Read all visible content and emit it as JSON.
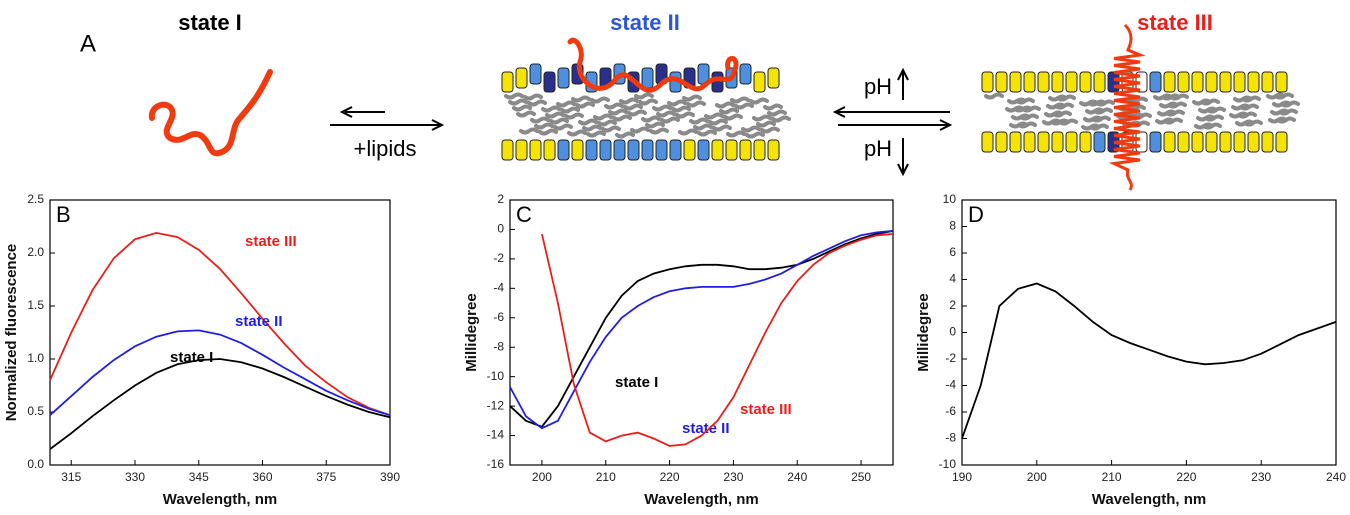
{
  "diagram": {
    "label": "A",
    "states": [
      "state I",
      "state II",
      "state III"
    ],
    "arrow_labels": [
      "+lipids",
      "pH",
      "pH"
    ]
  },
  "chart_data": [
    {
      "type": "line",
      "label": "B",
      "x_label": "Wavelength, nm",
      "y_label": "Normalized fluorescence",
      "x": [
        310,
        315,
        320,
        325,
        330,
        335,
        340,
        345,
        350,
        355,
        360,
        365,
        370,
        375,
        380,
        385,
        390
      ],
      "series": [
        {
          "name": "state III",
          "color": "#e8201c",
          "values": [
            0.8,
            1.25,
            1.65,
            1.95,
            2.13,
            2.19,
            2.15,
            2.03,
            1.85,
            1.62,
            1.38,
            1.15,
            0.94,
            0.78,
            0.64,
            0.54,
            0.47
          ]
        },
        {
          "name": "state II",
          "color": "#1f1fe0",
          "values": [
            0.47,
            0.65,
            0.83,
            0.99,
            1.12,
            1.21,
            1.26,
            1.27,
            1.23,
            1.15,
            1.04,
            0.92,
            0.81,
            0.7,
            0.61,
            0.53,
            0.47
          ]
        },
        {
          "name": "state I",
          "color": "#000000",
          "values": [
            0.15,
            0.3,
            0.46,
            0.61,
            0.75,
            0.87,
            0.95,
            0.99,
            1.0,
            0.97,
            0.91,
            0.83,
            0.74,
            0.65,
            0.57,
            0.5,
            0.45
          ]
        }
      ],
      "xlim": [
        310,
        390
      ],
      "ylim": [
        0,
        2.5
      ],
      "xticks": [
        315,
        330,
        345,
        360,
        375,
        390
      ],
      "yticks": [
        {
          "value": 0,
          "label": "0.0"
        },
        0.5,
        {
          "value": 1,
          "label": "1.0"
        },
        1.5,
        {
          "value": 2,
          "label": "2.0"
        },
        2.5
      ]
    },
    {
      "type": "line",
      "label": "C",
      "x_label": "Wavelength, nm",
      "y_label": "Millidegree",
      "x": [
        195,
        197.5,
        200,
        202.5,
        205,
        207.5,
        210,
        212.5,
        215,
        217.5,
        220,
        222.5,
        225,
        227.5,
        230,
        232.5,
        235,
        237.5,
        240,
        242.5,
        245,
        247.5,
        250,
        252.5,
        255
      ],
      "series": [
        {
          "name": "state I",
          "color": "#000000",
          "values": [
            -12,
            -13,
            -13.4,
            -12,
            -10,
            -8,
            -6,
            -4.5,
            -3.5,
            -3,
            -2.7,
            -2.5,
            -2.4,
            -2.4,
            -2.5,
            -2.7,
            -2.7,
            -2.6,
            -2.4,
            -2,
            -1.5,
            -1,
            -0.6,
            -0.3,
            -0.1
          ]
        },
        {
          "name": "state II",
          "color": "#1f1fe0",
          "values": [
            -10.7,
            -12.7,
            -13.5,
            -13,
            -11,
            -9,
            -7.3,
            -6,
            -5.2,
            -4.6,
            -4.2,
            -4,
            -3.9,
            -3.9,
            -3.9,
            -3.7,
            -3.4,
            -3,
            -2.4,
            -1.8,
            -1.3,
            -0.8,
            -0.4,
            -0.2,
            -0.1
          ]
        },
        {
          "name": "state III",
          "color": "#e8201c",
          "values": [
            null,
            null,
            -0.3,
            -5,
            -10.5,
            -13.8,
            -14.4,
            -14,
            -13.8,
            -14.2,
            -14.7,
            -14.6,
            -14,
            -13,
            -11.4,
            -9.2,
            -7,
            -5,
            -3.5,
            -2.4,
            -1.6,
            -1.1,
            -0.7,
            -0.4,
            -0.3
          ]
        }
      ],
      "xlim": [
        195,
        255
      ],
      "ylim": [
        -16,
        2
      ],
      "xticks": [
        200,
        210,
        220,
        230,
        240,
        250
      ],
      "yticks": [
        -16,
        -14,
        -12,
        -10,
        -8,
        -6,
        -4,
        -2,
        0,
        2
      ]
    },
    {
      "type": "line",
      "label": "D",
      "x_label": "Wavelength, nm",
      "y_label": "Millidegree",
      "x": [
        190,
        192.5,
        195,
        197.5,
        200,
        202.5,
        205,
        207.5,
        210,
        212.5,
        215,
        217.5,
        220,
        222.5,
        225,
        227.5,
        230,
        232.5,
        235,
        237.5,
        240
      ],
      "series": [
        {
          "color": "#000000",
          "values": [
            -8,
            -4,
            2,
            3.3,
            3.7,
            3.1,
            2.0,
            0.8,
            -0.2,
            -0.8,
            -1.3,
            -1.8,
            -2.2,
            -2.4,
            -2.3,
            -2.1,
            -1.6,
            -0.9,
            -0.2,
            0.3,
            0.8
          ]
        }
      ],
      "xlim": [
        190,
        240
      ],
      "ylim": [
        -10,
        10
      ],
      "xticks": [
        190,
        200,
        210,
        220,
        230,
        240
      ],
      "yticks": [
        -10,
        -8,
        -6,
        -4,
        -2,
        0,
        2,
        4,
        6,
        8,
        10
      ]
    }
  ]
}
